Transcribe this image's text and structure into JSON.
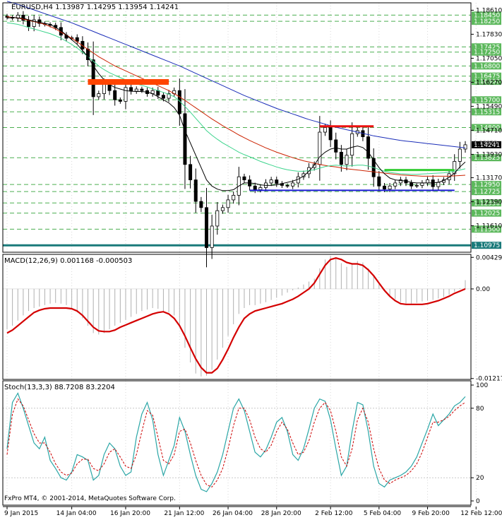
{
  "colors": {
    "background": "#ffffff",
    "grid": "#c0c0c0",
    "axis": "#000000",
    "candle": "#000000",
    "level_line": "#4caf50",
    "price_box": "#5cb85c",
    "ma_fast": "#000000",
    "ma_green": "#3cd48c",
    "ma_red": "#cc2200",
    "ma_blue": "#1a2db8",
    "resistance": "#ff4400",
    "support": "#1a1ad6",
    "teal_level": "#1a7a7a",
    "macd_hist": "#b0b0b0",
    "macd_signal": "#d40000",
    "stoch_main": "#2aa6a6",
    "stoch_signal": "#cc0000"
  },
  "header": {
    "label": "EURUSD,H4  1.13987 1.14295 1.13954 1.14241"
  },
  "price_pane": {
    "ylim": [
      1.1075,
      1.1885
    ],
    "ticks": [
      "1.18610",
      "1.17830",
      "1.17050",
      "1.16270",
      "1.15490",
      "1.14710",
      "1.13930",
      "1.13170",
      "1.12390",
      "1.11610"
    ],
    "tick_values": [
      1.1861,
      1.1783,
      1.1705,
      1.1627,
      1.1549,
      1.1471,
      1.1393,
      1.1317,
      1.1239,
      1.1161
    ],
    "levels": [
      1.1845,
      1.1825,
      1.1742,
      1.1725,
      1.168,
      1.1647,
      1.163,
      1.157,
      1.1531,
      1.148,
      1.1382,
      1.1295,
      1.1272,
      1.1235,
      1.1202,
      1.115
    ],
    "level_labels": [
      "1.18450",
      "1.18250",
      "1.17425",
      "1.17250",
      "1.16800",
      "1.16475",
      "1.16300",
      "1.15700",
      "1.15315",
      "1.14800",
      "1.13825",
      "1.12950",
      "1.12725",
      "1.12350",
      "1.12025",
      "1.11500"
    ],
    "current_price": {
      "value": 1.14241,
      "label": "1.14241"
    },
    "teal_level": {
      "value": 1.10975,
      "label": "1.10975"
    },
    "resistance_1": {
      "value": 1.1628,
      "from": 15,
      "to": 30
    },
    "resistance_2": {
      "value": 1.1484,
      "from": 58,
      "to": 68
    },
    "support": {
      "value": 1.1276,
      "from": 45,
      "to": 83
    },
    "green_line": {
      "value": 1.1342,
      "from": 70,
      "to": 83
    },
    "faint_label": "1.13020"
  },
  "macd_pane": {
    "label": "MACD(12,26,9) 0.001168 -0.000503",
    "ylim": [
      -0.0123,
      0.0047
    ],
    "ticks": [
      "0.00429",
      "0.00",
      "-0.012179"
    ],
    "tick_values": [
      0.00429,
      0.0,
      -0.012179
    ]
  },
  "stoch_pane": {
    "label": "Stoch(13,3,3) 88.7208 83.2204",
    "ylim": [
      0,
      100
    ],
    "ticks": [
      "100",
      "80",
      "20",
      "0"
    ],
    "tick_values": [
      100,
      80,
      20,
      0
    ]
  },
  "x_axis": {
    "labels": [
      "9 Jan 2015",
      "14 Jan 04:00",
      "16 Jan 20:00",
      "21 Jan 12:00",
      "26 Jan 04:00",
      "28 Jan 20:00",
      "2 Feb 12:00",
      "5 Feb 04:00",
      "9 Feb 20:00",
      "12 Feb 12:00"
    ],
    "label_index": [
      0,
      12,
      22,
      32,
      41,
      50,
      60,
      69,
      78,
      87
    ]
  },
  "copyright": "FxPro MT4, © 2001-2014, MetaQuotes Software Corp.",
  "chart_data": {
    "type": "candlestick",
    "symbol": "EURUSD",
    "timeframe": "H4",
    "close": [
      1.1838,
      1.1835,
      1.1845,
      1.1828,
      1.1808,
      1.183,
      1.1818,
      1.1815,
      1.1812,
      1.1805,
      1.178,
      1.177,
      1.1772,
      1.176,
      1.1735,
      1.17,
      1.158,
      1.159,
      1.162,
      1.16,
      1.157,
      1.1565,
      1.161,
      1.1598,
      1.1605,
      1.16,
      1.159,
      1.16,
      1.1585,
      1.1575,
      1.159,
      1.16,
      1.1525,
      1.136,
      1.131,
      1.124,
      1.122,
      1.109,
      1.116,
      1.121,
      1.122,
      1.1245,
      1.126,
      1.132,
      1.131,
      1.129,
      1.1278,
      1.1285,
      1.13,
      1.131,
      1.1298,
      1.1292,
      1.129,
      1.13,
      1.132,
      1.133,
      1.135,
      1.136,
      1.1465,
      1.148,
      1.144,
      1.14,
      1.136,
      1.139,
      1.146,
      1.147,
      1.145,
      1.138,
      1.132,
      1.129,
      1.128,
      1.129,
      1.13,
      1.131,
      1.13,
      1.129,
      1.1292,
      1.13,
      1.131,
      1.1288,
      1.1302,
      1.131,
      1.133,
      1.137,
      1.141,
      1.1424
    ],
    "ma_fast": [
      1.1835,
      1.1838,
      1.1836,
      1.1835,
      1.183,
      1.1825,
      1.1822,
      1.1818,
      1.1815,
      1.1805,
      1.1795,
      1.178,
      1.1765,
      1.175,
      1.173,
      1.171,
      1.168,
      1.1655,
      1.1635,
      1.162,
      1.161,
      1.1605,
      1.16,
      1.1598,
      1.1597,
      1.1597,
      1.1595,
      1.159,
      1.158,
      1.157,
      1.156,
      1.1545,
      1.152,
      1.147,
      1.143,
      1.139,
      1.135,
      1.131,
      1.129,
      1.128,
      1.1275,
      1.1275,
      1.1278,
      1.129,
      1.13,
      1.13,
      1.1298,
      1.1294,
      1.1292,
      1.1292,
      1.1294,
      1.1298,
      1.1302,
      1.1306,
      1.1312,
      1.1322,
      1.1338,
      1.1358,
      1.1385,
      1.14,
      1.141,
      1.1414,
      1.141,
      1.141,
      1.1416,
      1.142,
      1.1415,
      1.14,
      1.1375,
      1.135,
      1.133,
      1.1316,
      1.131,
      1.1308,
      1.1306,
      1.1302,
      1.13,
      1.13,
      1.13,
      1.13,
      1.1302,
      1.1308,
      1.1318,
      1.1332,
      1.1352,
      1.1368
    ],
    "ma_green": [
      1.182,
      1.1818,
      1.1815,
      1.181,
      1.1805,
      1.18,
      1.1795,
      1.179,
      1.1785,
      1.1778,
      1.177,
      1.176,
      1.175,
      1.1738,
      1.1725,
      1.171,
      1.1695,
      1.168,
      1.1668,
      1.1658,
      1.165,
      1.1642,
      1.1635,
      1.1628,
      1.1622,
      1.1617,
      1.1612,
      1.1605,
      1.16,
      1.1594,
      1.1588,
      1.158,
      1.1566,
      1.1548,
      1.153,
      1.151,
      1.149,
      1.147,
      1.1455,
      1.1442,
      1.143,
      1.142,
      1.141,
      1.14,
      1.1392,
      1.1385,
      1.1378,
      1.137,
      1.1364,
      1.1358,
      1.1352,
      1.1347,
      1.1343,
      1.134,
      1.1338,
      1.1338,
      1.134,
      1.1343,
      1.1348,
      1.1353,
      1.1356,
      1.1358,
      1.1356,
      1.1355,
      1.1356,
      1.1358,
      1.1358,
      1.1355,
      1.135,
      1.1344,
      1.1338,
      1.1334,
      1.1332,
      1.133,
      1.1329,
      1.1328,
      1.1328,
      1.1329,
      1.133,
      1.1331,
      1.1332,
      1.1333,
      1.1335,
      1.1338,
      1.1342,
      1.1346
    ],
    "ma_red": [
      1.184,
      1.1838,
      1.1836,
      1.1832,
      1.1828,
      1.1824,
      1.182,
      1.1815,
      1.1808,
      1.18,
      1.179,
      1.178,
      1.177,
      1.1758,
      1.1746,
      1.1734,
      1.1722,
      1.171,
      1.17,
      1.169,
      1.168,
      1.1672,
      1.1664,
      1.1656,
      1.1648,
      1.164,
      1.1632,
      1.1624,
      1.1616,
      1.1608,
      1.16,
      1.159,
      1.158,
      1.1568,
      1.1556,
      1.1544,
      1.1532,
      1.152,
      1.1508,
      1.1497,
      1.1486,
      1.1476,
      1.1466,
      1.1456,
      1.1447,
      1.1438,
      1.143,
      1.1422,
      1.1414,
      1.1407,
      1.14,
      1.1394,
      1.1388,
      1.1382,
      1.1377,
      1.1372,
      1.1368,
      1.1364,
      1.136,
      1.1357,
      1.1354,
      1.1352,
      1.1349,
      1.1346,
      1.1344,
      1.1342,
      1.134,
      1.1338,
      1.1336,
      1.1334,
      1.1332,
      1.133,
      1.1328,
      1.1326,
      1.1325,
      1.1324,
      1.1323,
      1.1322,
      1.1322,
      1.1322,
      1.1322,
      1.1322,
      1.1322,
      1.1323,
      1.1324,
      1.1325
    ],
    "ma_blue": [
      1.189,
      1.1885,
      1.188,
      1.1874,
      1.1868,
      1.1862,
      1.1856,
      1.185,
      1.1844,
      1.1838,
      1.1832,
      1.1826,
      1.182,
      1.1813,
      1.1806,
      1.1799,
      1.1792,
      1.1785,
      1.1778,
      1.1771,
      1.1764,
      1.1757,
      1.175,
      1.1743,
      1.1736,
      1.1729,
      1.1722,
      1.1715,
      1.1708,
      1.1701,
      1.1694,
      1.1687,
      1.168,
      1.1672,
      1.1664,
      1.1656,
      1.1648,
      1.164,
      1.1632,
      1.1624,
      1.1616,
      1.1608,
      1.16,
      1.1592,
      1.1584,
      1.1577,
      1.157,
      1.1563,
      1.1556,
      1.1549,
      1.1542,
      1.1536,
      1.153,
      1.1524,
      1.1518,
      1.1512,
      1.1506,
      1.1501,
      1.1496,
      1.1491,
      1.1486,
      1.1481,
      1.1477,
      1.1473,
      1.1469,
      1.1465,
      1.1461,
      1.1457,
      1.1453,
      1.145,
      1.1447,
      1.1444,
      1.1441,
      1.1438,
      1.1436,
      1.1434,
      1.1432,
      1.143,
      1.1428,
      1.1426,
      1.1424,
      1.1422,
      1.142,
      1.1418,
      1.1416,
      1.1414
    ],
    "macd_main": [
      -0.0055,
      -0.005,
      -0.0043,
      -0.0036,
      -0.003,
      -0.0026,
      -0.0024,
      -0.0022,
      -0.002,
      -0.0019,
      -0.002,
      -0.0022,
      -0.0026,
      -0.0032,
      -0.004,
      -0.005,
      -0.006,
      -0.0062,
      -0.006,
      -0.0055,
      -0.005,
      -0.0046,
      -0.0042,
      -0.0038,
      -0.0034,
      -0.003,
      -0.0028,
      -0.0026,
      -0.0027,
      -0.003,
      -0.0032,
      -0.0036,
      -0.005,
      -0.008,
      -0.01,
      -0.0115,
      -0.0119,
      -0.0118,
      -0.011,
      -0.0096,
      -0.008,
      -0.0064,
      -0.0048,
      -0.0034,
      -0.0026,
      -0.0022,
      -0.0022,
      -0.002,
      -0.0018,
      -0.0015,
      -0.0012,
      -0.0009,
      -0.0005,
      -0.0002,
      0.0002,
      0.0006,
      0.001,
      0.0014,
      0.0028,
      0.004,
      0.0045,
      0.0043,
      0.0035,
      0.003,
      0.0035,
      0.0038,
      0.0036,
      0.0028,
      0.0018,
      0.0008,
      -0.0002,
      -0.001,
      -0.0014,
      -0.0018,
      -0.002,
      -0.002,
      -0.0019,
      -0.0017,
      -0.0016,
      -0.0015,
      -0.0013,
      -0.0011,
      -0.0008,
      -0.0004,
      0.0001,
      0.0012
    ],
    "macd_signal": [
      -0.006,
      -0.0056,
      -0.005,
      -0.0044,
      -0.0038,
      -0.0032,
      -0.0029,
      -0.0027,
      -0.0026,
      -0.0026,
      -0.0026,
      -0.0026,
      -0.0027,
      -0.003,
      -0.0036,
      -0.0044,
      -0.0052,
      -0.0057,
      -0.0058,
      -0.0058,
      -0.0056,
      -0.0052,
      -0.0049,
      -0.0046,
      -0.0043,
      -0.004,
      -0.0037,
      -0.0034,
      -0.0032,
      -0.0031,
      -0.0034,
      -0.004,
      -0.005,
      -0.0064,
      -0.008,
      -0.0095,
      -0.0107,
      -0.0114,
      -0.0114,
      -0.0108,
      -0.0096,
      -0.0082,
      -0.0066,
      -0.0052,
      -0.004,
      -0.0034,
      -0.003,
      -0.0028,
      -0.0026,
      -0.0024,
      -0.0022,
      -0.002,
      -0.0017,
      -0.0014,
      -0.001,
      -0.0005,
      0.0,
      0.0008,
      0.002,
      0.0032,
      0.004,
      0.0042,
      0.004,
      0.0036,
      0.0034,
      0.0034,
      0.0032,
      0.0026,
      0.0018,
      0.0008,
      -0.0002,
      -0.001,
      -0.0016,
      -0.002,
      -0.0021,
      -0.0021,
      -0.0021,
      -0.0021,
      -0.002,
      -0.0018,
      -0.0016,
      -0.0013,
      -0.001,
      -0.0006,
      -0.0003,
      0.0
    ],
    "stoch_main": [
      45,
      85,
      93,
      80,
      65,
      50,
      45,
      55,
      35,
      28,
      20,
      18,
      25,
      40,
      38,
      35,
      18,
      22,
      40,
      50,
      45,
      30,
      22,
      25,
      55,
      75,
      85,
      70,
      40,
      22,
      35,
      48,
      72,
      60,
      40,
      22,
      10,
      8,
      15,
      25,
      40,
      60,
      80,
      88,
      78,
      60,
      42,
      38,
      44,
      55,
      68,
      72,
      60,
      40,
      35,
      45,
      62,
      80,
      88,
      86,
      70,
      45,
      22,
      30,
      60,
      85,
      83,
      60,
      30,
      15,
      12,
      18,
      20,
      22,
      25,
      30,
      38,
      50,
      62,
      75,
      65,
      70,
      75,
      82,
      85,
      90
    ],
    "stoch_signal": [
      40,
      75,
      88,
      82,
      70,
      58,
      50,
      50,
      42,
      32,
      25,
      22,
      24,
      32,
      36,
      36,
      28,
      26,
      32,
      42,
      45,
      38,
      30,
      28,
      40,
      60,
      78,
      74,
      55,
      35,
      32,
      40,
      60,
      62,
      50,
      35,
      22,
      14,
      12,
      18,
      28,
      45,
      65,
      80,
      80,
      70,
      55,
      45,
      42,
      48,
      60,
      68,
      62,
      50,
      40,
      42,
      52,
      68,
      80,
      85,
      78,
      60,
      38,
      30,
      45,
      70,
      80,
      68,
      45,
      28,
      18,
      15,
      18,
      20,
      22,
      26,
      32,
      42,
      55,
      68,
      68,
      70,
      73,
      78,
      82,
      85
    ]
  }
}
